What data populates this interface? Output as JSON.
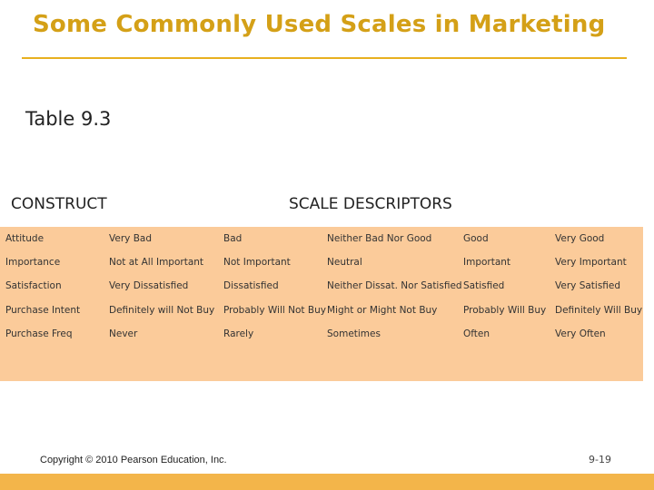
{
  "slide": {
    "title": "Some Commonly Used Scales in Marketing",
    "subtitle": "Table 9.3",
    "construct_header": "CONSTRUCT",
    "descriptors_header": "SCALE DESCRIPTORS",
    "copyright": "Copyright © 2010 Pearson Education, Inc.",
    "page_number": "9-19"
  },
  "colors": {
    "title": "#d4a017",
    "rule": "#e8b020",
    "table_background": "#fbcb9a",
    "bottom_bar": "#f3b54a"
  },
  "table": {
    "rows": [
      [
        "Attitude",
        "Very Bad",
        "Bad",
        "Neither Bad Nor Good",
        "Good",
        "Very Good"
      ],
      [
        "Importance",
        "Not at All Important",
        "Not Important",
        "Neutral",
        "Important",
        "Very Important"
      ],
      [
        "Satisfaction",
        "Very Dissatisfied",
        "Dissatisfied",
        "Neither Dissat. Nor Satisfied",
        "Satisfied",
        "Very Satisfied"
      ],
      [
        "Purchase Intent",
        "Definitely will Not Buy",
        "Probably Will Not Buy",
        "Might or Might Not Buy",
        "Probably Will Buy",
        "Definitely Will Buy"
      ],
      [
        "Purchase Freq",
        "Never",
        "Rarely",
        "Sometimes",
        "Often",
        "Very Often"
      ]
    ]
  }
}
